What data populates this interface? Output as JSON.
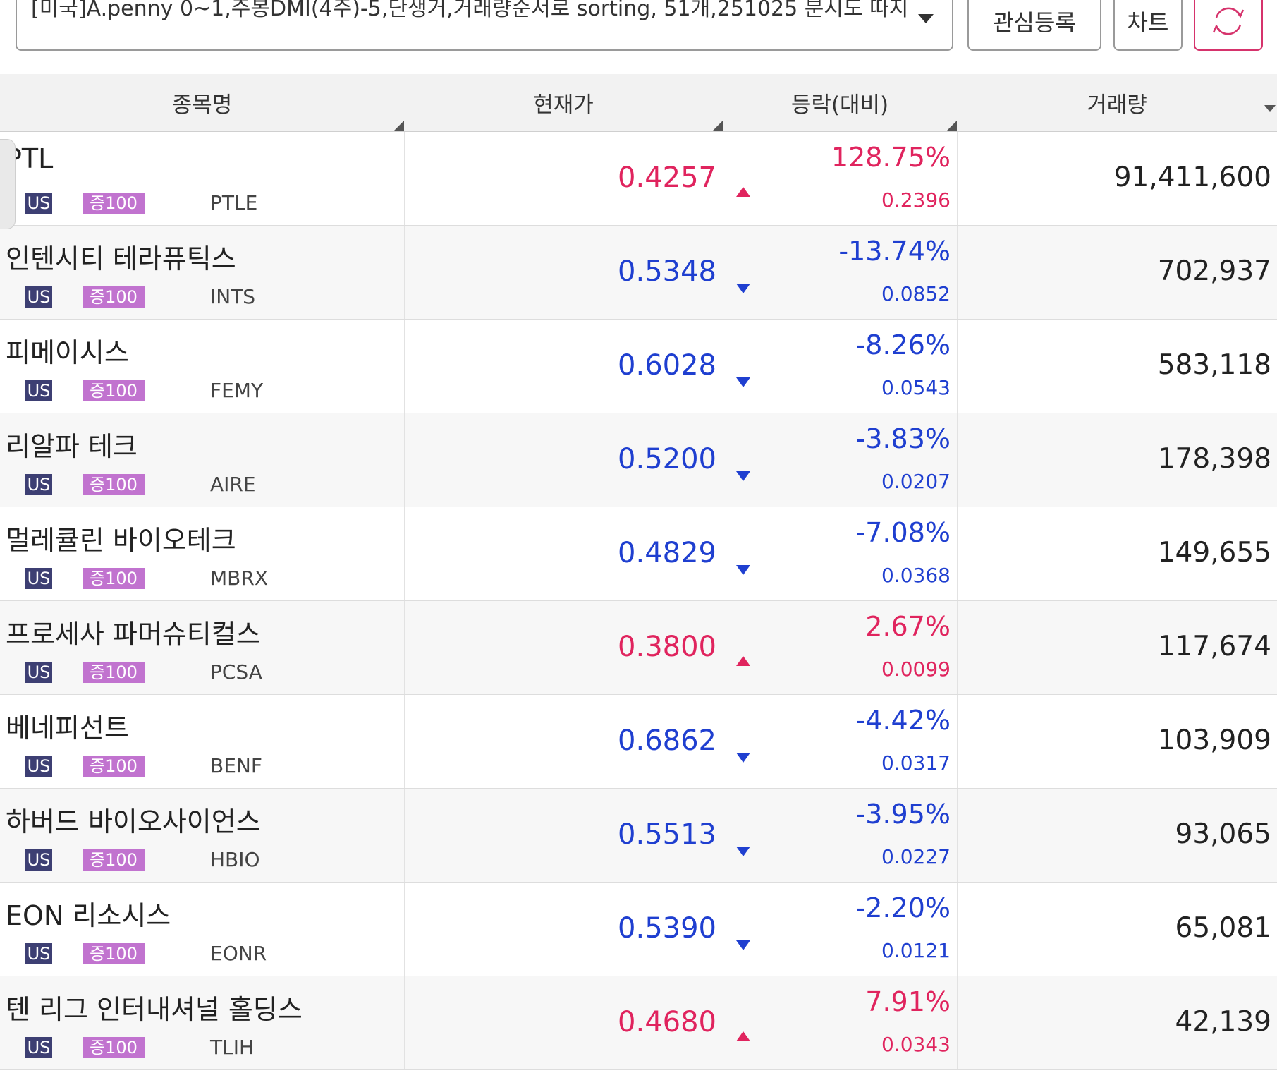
{
  "toolbar": {
    "condition": "[미국]A.penny 0~1,주봉DMI(4주)-5,단생거,거래량순서로 sorting, 51개,251025 분시도 따지",
    "watch_label": "관심등록",
    "chart_label": "차트"
  },
  "table": {
    "headers": {
      "name": "종목명",
      "price": "현재가",
      "change": "등락(대비)",
      "volume": "거래량"
    },
    "rows": [
      {
        "name": "PTL",
        "market": "US",
        "margin": "증100",
        "ticker": "PTLE",
        "price": "0.4257",
        "pct": "128.75%",
        "diff": "0.2396",
        "volume": "91,411,600",
        "dir": "up"
      },
      {
        "name": "인텐시티 테라퓨틱스",
        "market": "US",
        "margin": "증100",
        "ticker": "INTS",
        "price": "0.5348",
        "pct": "-13.74%",
        "diff": "0.0852",
        "volume": "702,937",
        "dir": "down"
      },
      {
        "name": "피메이시스",
        "market": "US",
        "margin": "증100",
        "ticker": "FEMY",
        "price": "0.6028",
        "pct": "-8.26%",
        "diff": "0.0543",
        "volume": "583,118",
        "dir": "down"
      },
      {
        "name": "리알파 테크",
        "market": "US",
        "margin": "증100",
        "ticker": "AIRE",
        "price": "0.5200",
        "pct": "-3.83%",
        "diff": "0.0207",
        "volume": "178,398",
        "dir": "down"
      },
      {
        "name": "멀레큘린 바이오테크",
        "market": "US",
        "margin": "증100",
        "ticker": "MBRX",
        "price": "0.4829",
        "pct": "-7.08%",
        "diff": "0.0368",
        "volume": "149,655",
        "dir": "down"
      },
      {
        "name": "프로세사 파머슈티컬스",
        "market": "US",
        "margin": "증100",
        "ticker": "PCSA",
        "price": "0.3800",
        "pct": "2.67%",
        "diff": "0.0099",
        "volume": "117,674",
        "dir": "up"
      },
      {
        "name": "베네피선트",
        "market": "US",
        "margin": "증100",
        "ticker": "BENF",
        "price": "0.6862",
        "pct": "-4.42%",
        "diff": "0.0317",
        "volume": "103,909",
        "dir": "down"
      },
      {
        "name": "하버드 바이오사이언스",
        "market": "US",
        "margin": "증100",
        "ticker": "HBIO",
        "price": "0.5513",
        "pct": "-3.95%",
        "diff": "0.0227",
        "volume": "93,065",
        "dir": "down"
      },
      {
        "name": "EON 리소시스",
        "market": "US",
        "margin": "증100",
        "ticker": "EONR",
        "price": "0.5390",
        "pct": "-2.20%",
        "diff": "0.0121",
        "volume": "65,081",
        "dir": "down"
      },
      {
        "name": "텐 리그 인터내셔널 홀딩스",
        "market": "US",
        "margin": "증100",
        "ticker": "TLIH",
        "price": "0.4680",
        "pct": "7.91%",
        "diff": "0.0343",
        "volume": "42,139",
        "dir": "up"
      }
    ]
  },
  "icons": {
    "dropdown": "chevron-down-icon",
    "refresh": "refresh-icon",
    "up": "triangle-up-icon",
    "down": "triangle-down-icon"
  },
  "colors": {
    "up": "#e0245e",
    "down": "#1f3fd0",
    "us_badge": "#3d3f73",
    "margin_badge": "#c173cf",
    "refresh_accent": "#d6336c"
  }
}
